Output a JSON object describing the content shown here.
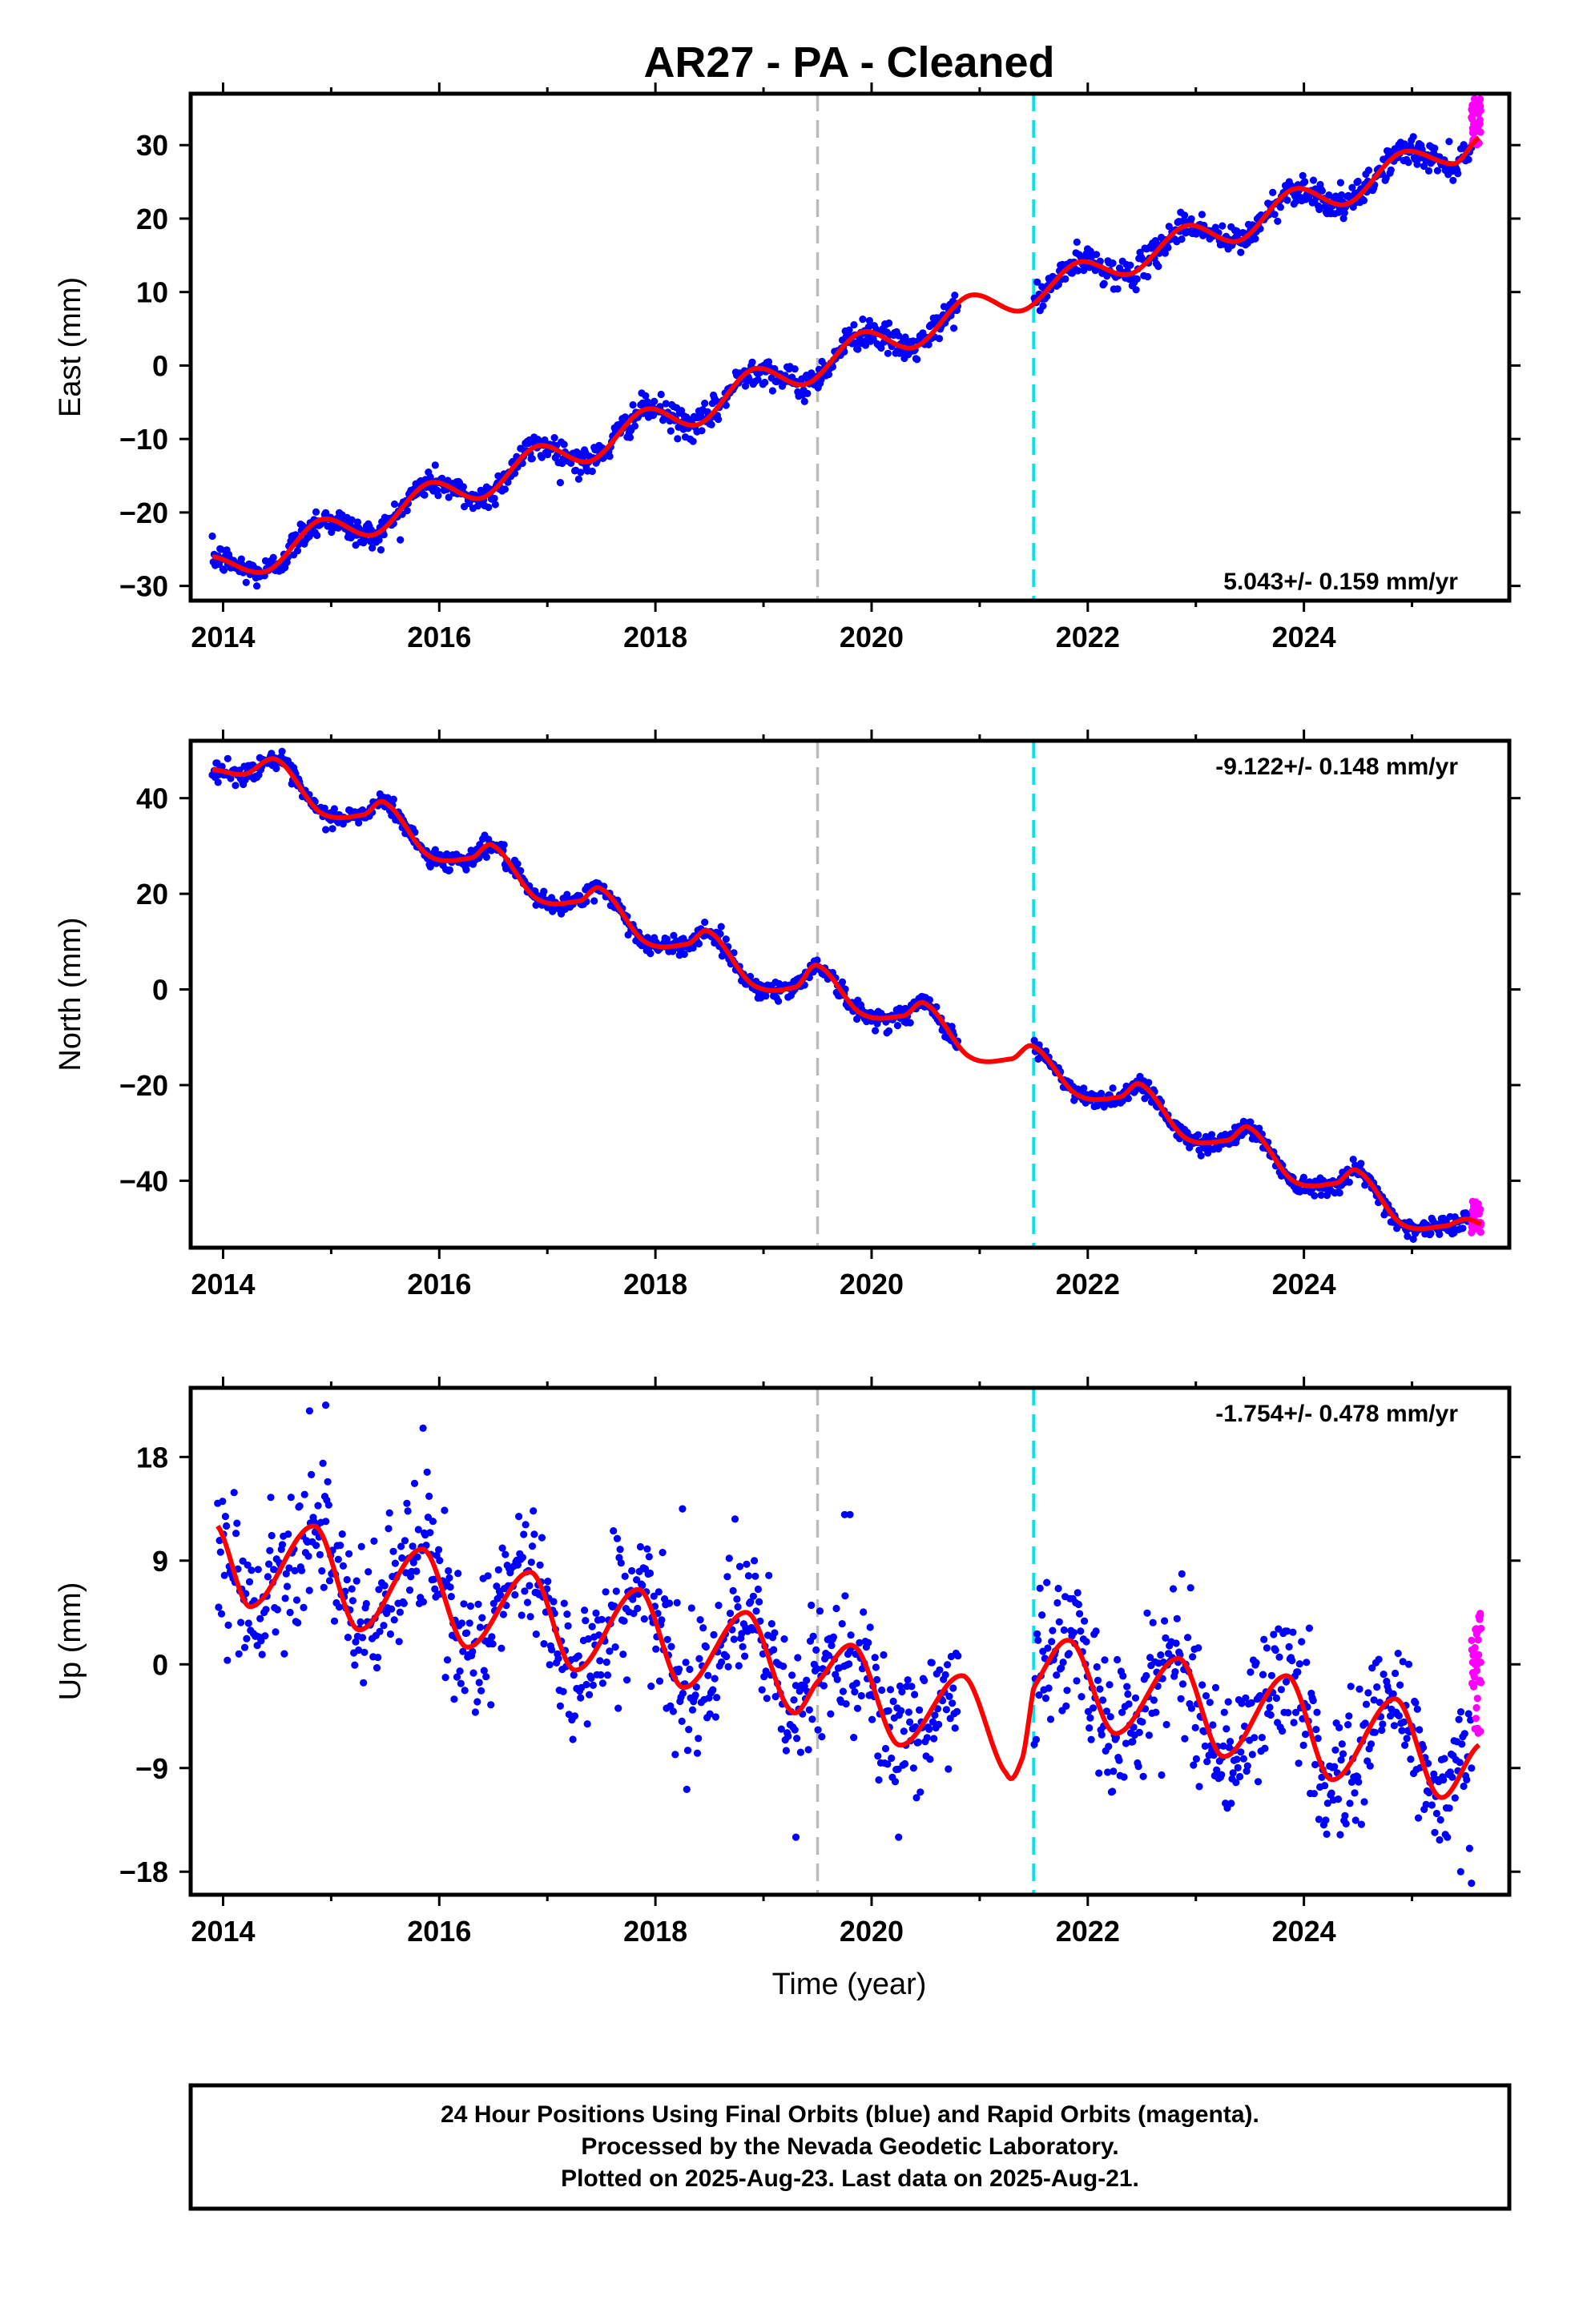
{
  "title": "AR27  - PA - Cleaned",
  "xlabel": "Time (year)",
  "footer": {
    "line1": "24 Hour Positions Using Final Orbits (blue) and Rapid Orbits (magenta).",
    "line2": "Processed by the Nevada Geodetic Laboratory.",
    "line3": "Plotted on 2025-Aug-23. Last data on 2025-Aug-21."
  },
  "colors": {
    "final_orbits": "#0000ff",
    "rapid_orbits": "#ff00ff",
    "model": "#ff0000",
    "gray_line": "#bbbbbb",
    "cyan_line": "#00e5ee"
  },
  "chart_data": [
    {
      "type": "scatter",
      "component": "east",
      "ylabel": "East (mm)",
      "rate_text": "5.043+/- 0.159 mm/yr",
      "rate_position": "bottom-right",
      "xlim": [
        2013.7,
        2025.9
      ],
      "ylim": [
        -32,
        37
      ],
      "xticks": [
        2014,
        2016,
        2018,
        2020,
        2022,
        2024
      ],
      "yticks": [
        -30,
        -20,
        -10,
        0,
        10,
        20,
        30
      ],
      "vlines": [
        {
          "x": 2019.5,
          "style": "gray-dashed"
        },
        {
          "x": 2021.5,
          "style": "cyan-dashed"
        }
      ],
      "data_gap": [
        2020.8,
        2021.5
      ],
      "rapid_range": [
        2025.55,
        2025.64
      ],
      "rapid_y": [
        30,
        36.5
      ],
      "final_scatter_sd": 1.0,
      "outliers": [],
      "model": {
        "x": [
          2013.9,
          2014.4,
          2014.9,
          2015.4,
          2015.9,
          2016.4,
          2016.9,
          2017.4,
          2017.9,
          2018.4,
          2018.9,
          2019.4,
          2019.9,
          2020.4,
          2020.9,
          2021.4,
          2021.9,
          2022.4,
          2022.9,
          2023.4,
          2023.9,
          2024.4,
          2024.9,
          2025.4,
          2025.62
        ],
        "y": [
          -26,
          -28,
          -21,
          -23,
          -16,
          -18,
          -11,
          -13,
          -6,
          -8,
          -0.5,
          -2.5,
          4.5,
          2.5,
          9.5,
          7.5,
          14,
          12.5,
          19,
          17,
          24,
          22,
          29,
          27.5,
          31
        ]
      }
    },
    {
      "type": "scatter",
      "component": "north",
      "ylabel": "North (mm)",
      "rate_text": "-9.122+/- 0.148 mm/yr",
      "rate_position": "top-right",
      "xlim": [
        2013.7,
        2025.9
      ],
      "ylim": [
        -54,
        52
      ],
      "xticks": [
        2014,
        2016,
        2018,
        2020,
        2022,
        2024
      ],
      "yticks": [
        -40,
        -20,
        0,
        20,
        40
      ],
      "vlines": [
        {
          "x": 2019.5,
          "style": "gray-dashed"
        },
        {
          "x": 2021.5,
          "style": "cyan-dashed"
        }
      ],
      "data_gap": [
        2020.8,
        2021.5
      ],
      "rapid_range": [
        2025.55,
        2025.64
      ],
      "rapid_y": [
        -51,
        -44
      ],
      "final_scatter_sd": 1.0,
      "outliers": [],
      "model": {
        "x": [
          2013.9,
          2014.2,
          2014.5,
          2014.9,
          2015.3,
          2015.5,
          2015.9,
          2016.3,
          2016.5,
          2016.9,
          2017.3,
          2017.5,
          2017.9,
          2018.3,
          2018.5,
          2018.9,
          2019.3,
          2019.5,
          2019.9,
          2020.3,
          2020.5,
          2020.9,
          2021.3,
          2021.5,
          2021.9,
          2022.3,
          2022.5,
          2022.9,
          2023.3,
          2023.5,
          2023.9,
          2024.3,
          2024.5,
          2024.9,
          2025.3,
          2025.5,
          2025.64
        ],
        "y": [
          46,
          45,
          48,
          37,
          36.5,
          39,
          28,
          27.5,
          30,
          19,
          18.5,
          21,
          10,
          9.5,
          12,
          1,
          0.5,
          5,
          -5,
          -5.5,
          -3,
          -14,
          -14.5,
          -12,
          -22,
          -22.5,
          -20,
          -31,
          -31.5,
          -29,
          -40,
          -40.5,
          -38,
          -49,
          -49.5,
          -48,
          -49
        ]
      }
    },
    {
      "type": "scatter",
      "component": "up",
      "ylabel": "Up (mm)",
      "rate_text": "-1.754+/- 0.478 mm/yr",
      "rate_position": "top-right",
      "xlim": [
        2013.7,
        2025.9
      ],
      "ylim": [
        -20,
        24
      ],
      "xticks": [
        2014,
        2016,
        2018,
        2020,
        2022,
        2024
      ],
      "yticks": [
        -18,
        -9,
        0,
        9,
        18
      ],
      "vlines": [
        {
          "x": 2019.5,
          "style": "gray-dashed"
        },
        {
          "x": 2021.5,
          "style": "cyan-dashed"
        }
      ],
      "data_gap": [
        2020.8,
        2021.5
      ],
      "rapid_range": [
        2025.55,
        2025.64
      ],
      "rapid_y": [
        -6,
        4.5
      ],
      "final_scatter_sd": 3.0,
      "outliers": [
        [
          2014.8,
          22
        ],
        [
          2014.95,
          22.5
        ],
        [
          2015.85,
          20.5
        ],
        [
          2019.75,
          13
        ],
        [
          2019.8,
          13
        ],
        [
          2019.3,
          -15
        ],
        [
          2020.25,
          -15
        ],
        [
          2025.55,
          -19
        ],
        [
          2025.45,
          -18
        ],
        [
          2018.25,
          13.5
        ]
      ],
      "model": {
        "x": [
          2013.95,
          2014.25,
          2014.85,
          2015.25,
          2015.85,
          2016.25,
          2016.85,
          2017.25,
          2017.85,
          2018.25,
          2018.85,
          2019.25,
          2019.5,
          2019.85,
          2020.25,
          2020.85,
          2021.25,
          2021.4,
          2021.5,
          2021.85,
          2022.25,
          2022.85,
          2023.25,
          2023.85,
          2024.25,
          2024.85,
          2025.25,
          2025.62
        ],
        "y": [
          12,
          5,
          12,
          3,
          10,
          1.5,
          8,
          -0.5,
          6.5,
          -2,
          4.5,
          -4,
          -1.5,
          1.5,
          -7,
          -1,
          -9.5,
          -8,
          -2,
          2,
          -6,
          0.5,
          -8,
          -1,
          -10,
          -3,
          -11.5,
          -7
        ]
      }
    }
  ]
}
